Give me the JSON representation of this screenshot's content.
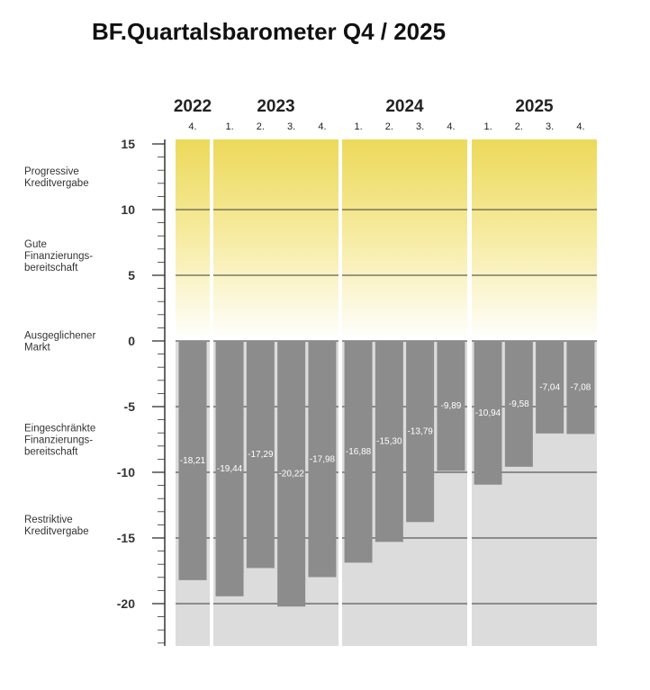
{
  "title": "BF.Quartalsbarometer Q4 / 2025",
  "chart_data": {
    "type": "bar",
    "title": "BF.Quartalsbarometer Q4 / 2025",
    "xlabel": "",
    "ylabel": "",
    "ylim": [
      -23,
      15
    ],
    "yticks": [
      15,
      10,
      5,
      0,
      -5,
      -10,
      -15,
      -20
    ],
    "ytick_labels": [
      "15",
      "10",
      "5",
      "0",
      "-5",
      "-10",
      "-15",
      "-20"
    ],
    "gridlines_at": [
      10,
      5,
      0,
      -5,
      -10,
      -15,
      -20
    ],
    "years": [
      {
        "label": "2022",
        "quarters": [
          "4."
        ]
      },
      {
        "label": "2023",
        "quarters": [
          "1.",
          "2.",
          "3.",
          "4."
        ]
      },
      {
        "label": "2024",
        "quarters": [
          "1.",
          "2.",
          "3.",
          "4."
        ]
      },
      {
        "label": "2025",
        "quarters": [
          "1.",
          "2.",
          "3.",
          "4."
        ]
      }
    ],
    "values": [
      -18.21,
      -19.44,
      -17.29,
      -20.22,
      -17.98,
      -16.88,
      -15.3,
      -13.79,
      -9.89,
      -10.94,
      -9.58,
      -7.04,
      -7.08
    ],
    "value_labels": [
      "-18,21",
      "-19,44",
      "-17,29",
      "-20,22",
      "-17,98",
      "-16,88",
      "-15,30",
      "-13,79",
      "-9,89",
      "-10,94",
      "-9,58",
      "-7,04",
      "-7,08"
    ],
    "zones": [
      {
        "label_lines": [
          "Progressive",
          "Kreditvergabe"
        ],
        "center": 12.5
      },
      {
        "label_lines": [
          "Gute",
          "Finanzierungs-",
          "bereitschaft"
        ],
        "center": 6.5
      },
      {
        "label_lines": [
          "Ausgeglichener",
          "Markt"
        ],
        "center": 0
      },
      {
        "label_lines": [
          "Eingeschränkte",
          "Finanzierungs-",
          "bereitschaft"
        ],
        "center": -7.5
      },
      {
        "label_lines": [
          "Restriktive",
          "Kreditvergabe"
        ],
        "center": -14
      }
    ],
    "colors": {
      "bar": "#8c8c8c",
      "bar_label": "#ffffff",
      "positive_zone_top": "#ecd95a",
      "positive_zone_bottom": "#ffffff",
      "negative_zone": "#dcdcdc",
      "gridline": "#3a3a3a",
      "axis": "#333333"
    }
  }
}
